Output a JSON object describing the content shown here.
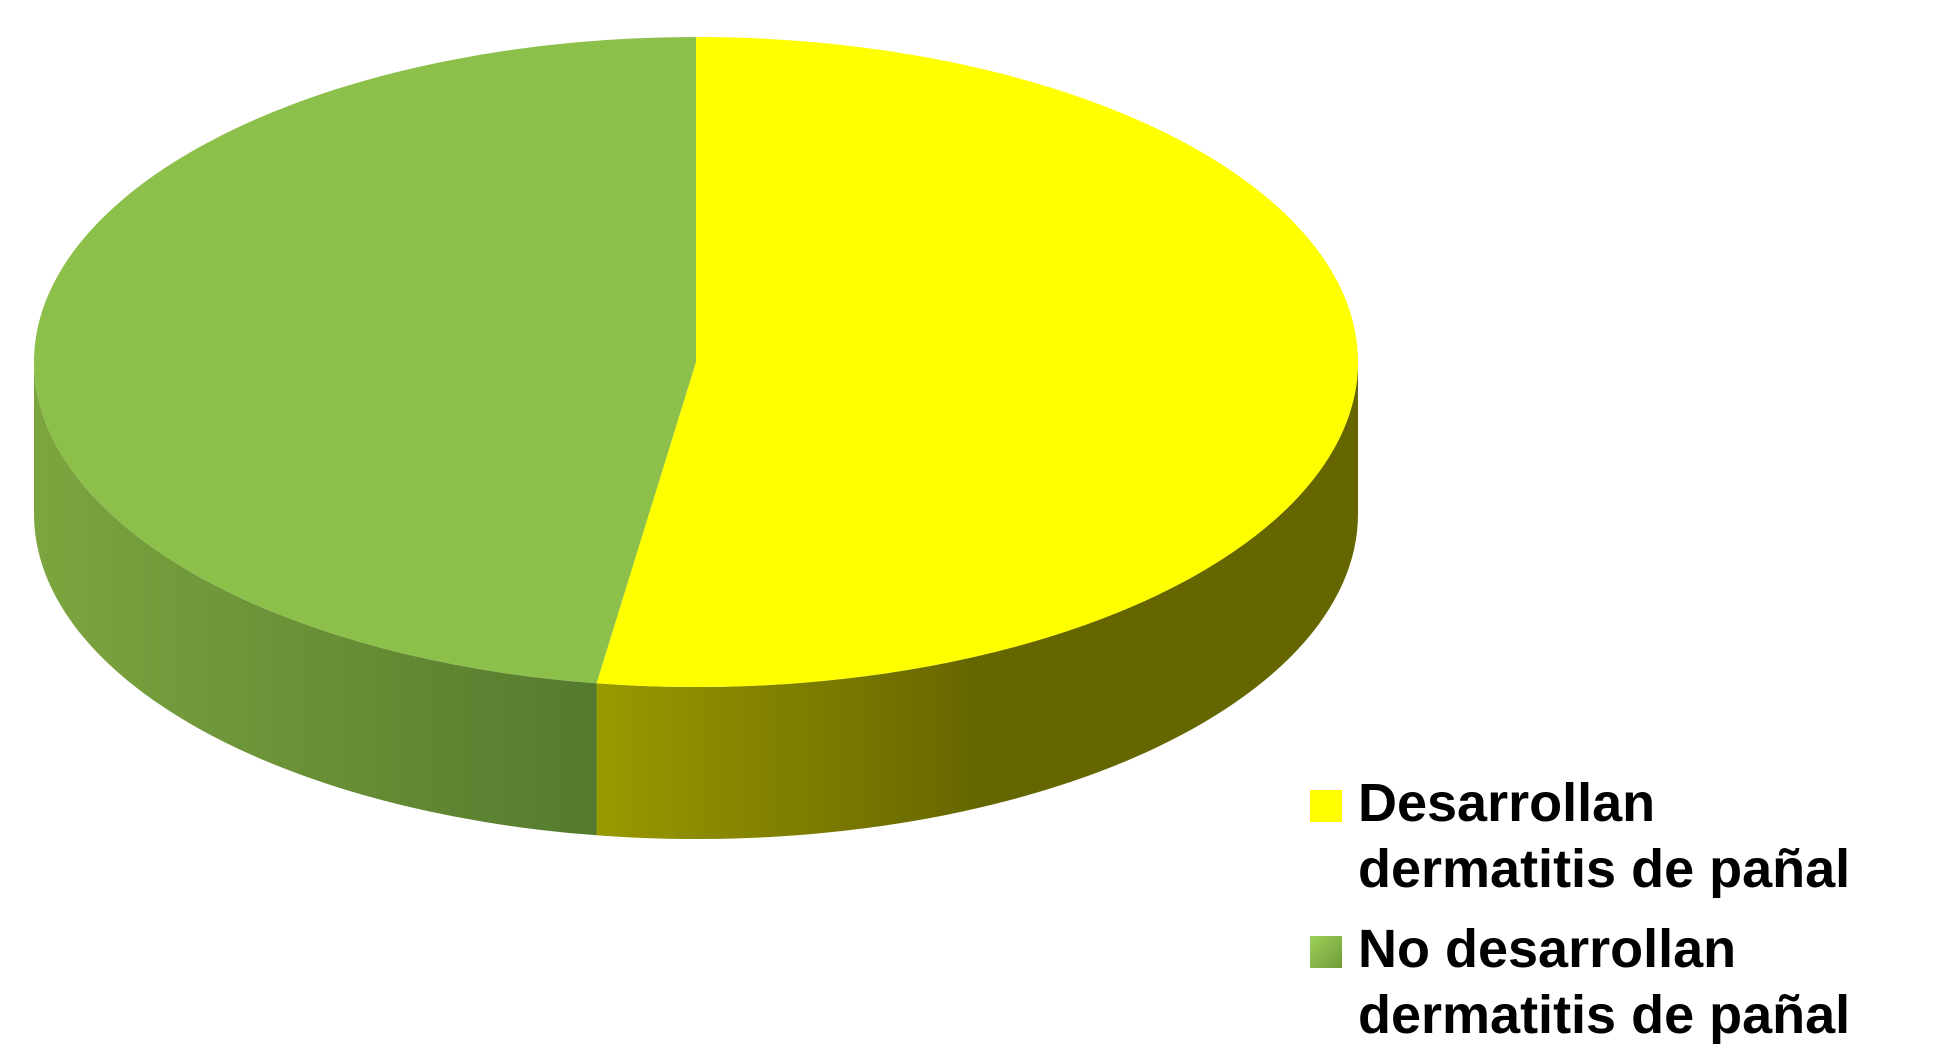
{
  "chart_data": {
    "type": "pie",
    "categories": [
      "Desarrollan dermatitis de pañal",
      "No desarrollan dermatitis de pañal"
    ],
    "values": [
      52.4,
      47.6
    ],
    "colors": {
      "top": [
        "#FFFF00",
        "#8CC04B"
      ],
      "side_light": [
        "#999900",
        "#7DA53F"
      ],
      "side_dark": [
        "#666600",
        "#557A2E"
      ]
    },
    "legend": {
      "position": "bottom-right",
      "entries": [
        {
          "label": "Desarrollan dermatitis de pañal",
          "color": "#FFFF00"
        },
        {
          "label": "No desarrollan dermatitis de pañal",
          "color": "#8CC04B"
        }
      ]
    },
    "data_labels": false,
    "title": ""
  }
}
